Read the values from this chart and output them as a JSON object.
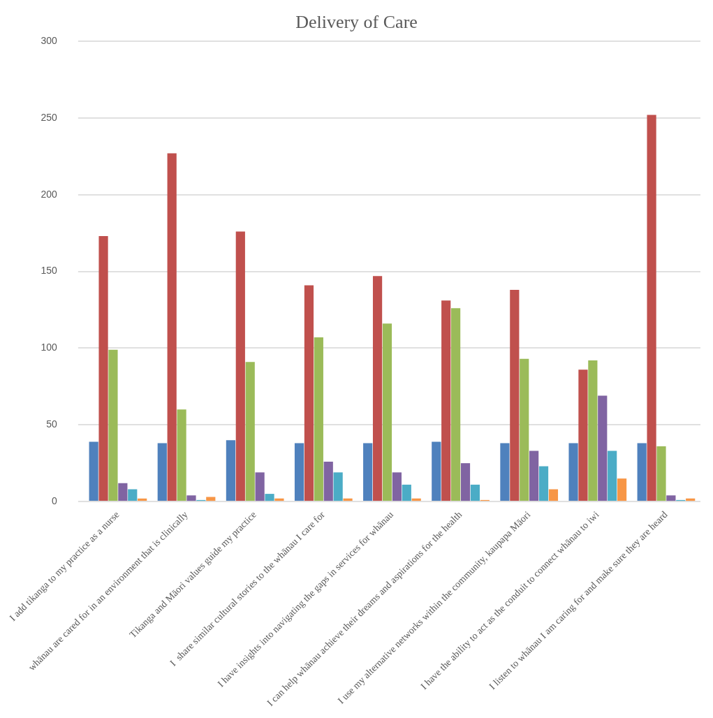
{
  "chart_data": {
    "type": "bar",
    "title": "Delivery of Care",
    "categories": [
      "I add tikanga to my practice as a nurse",
      "whānau are cared for in an environment that is clinically",
      "Tikanga and Māori values guide my practice",
      "I  share similar cultural stories to the whānau I care for",
      "I have insights into navigating the gaps in services for whānau",
      "I can help whānau achieve their dreams and aspirations for the health",
      "I use my alternative networks within the community, kaupapa Māori",
      "I have the ability to act as the conduit to connect whānau to iwi",
      "I listen to whānau I am caring for and make sure they are heard"
    ],
    "series": [
      {
        "color": "#4f81bd",
        "values": [
          39,
          38,
          40,
          38,
          38,
          39,
          38,
          38,
          38
        ]
      },
      {
        "color": "#c0504d",
        "values": [
          173,
          227,
          176,
          141,
          147,
          131,
          138,
          86,
          252
        ]
      },
      {
        "color": "#9bbb59",
        "values": [
          99,
          60,
          91,
          107,
          116,
          126,
          93,
          92,
          36
        ]
      },
      {
        "color": "#8064a2",
        "values": [
          12,
          4,
          19,
          26,
          19,
          25,
          33,
          69,
          4
        ]
      },
      {
        "color": "#4bacc6",
        "values": [
          8,
          1,
          5,
          19,
          11,
          11,
          23,
          33,
          1
        ]
      },
      {
        "color": "#f79646",
        "values": [
          2,
          3,
          2,
          2,
          2,
          1,
          8,
          15,
          2
        ]
      }
    ],
    "ylim": [
      0,
      300
    ],
    "yticks": [
      0,
      50,
      100,
      150,
      200,
      250,
      300
    ],
    "grid": "y",
    "legend": false
  }
}
